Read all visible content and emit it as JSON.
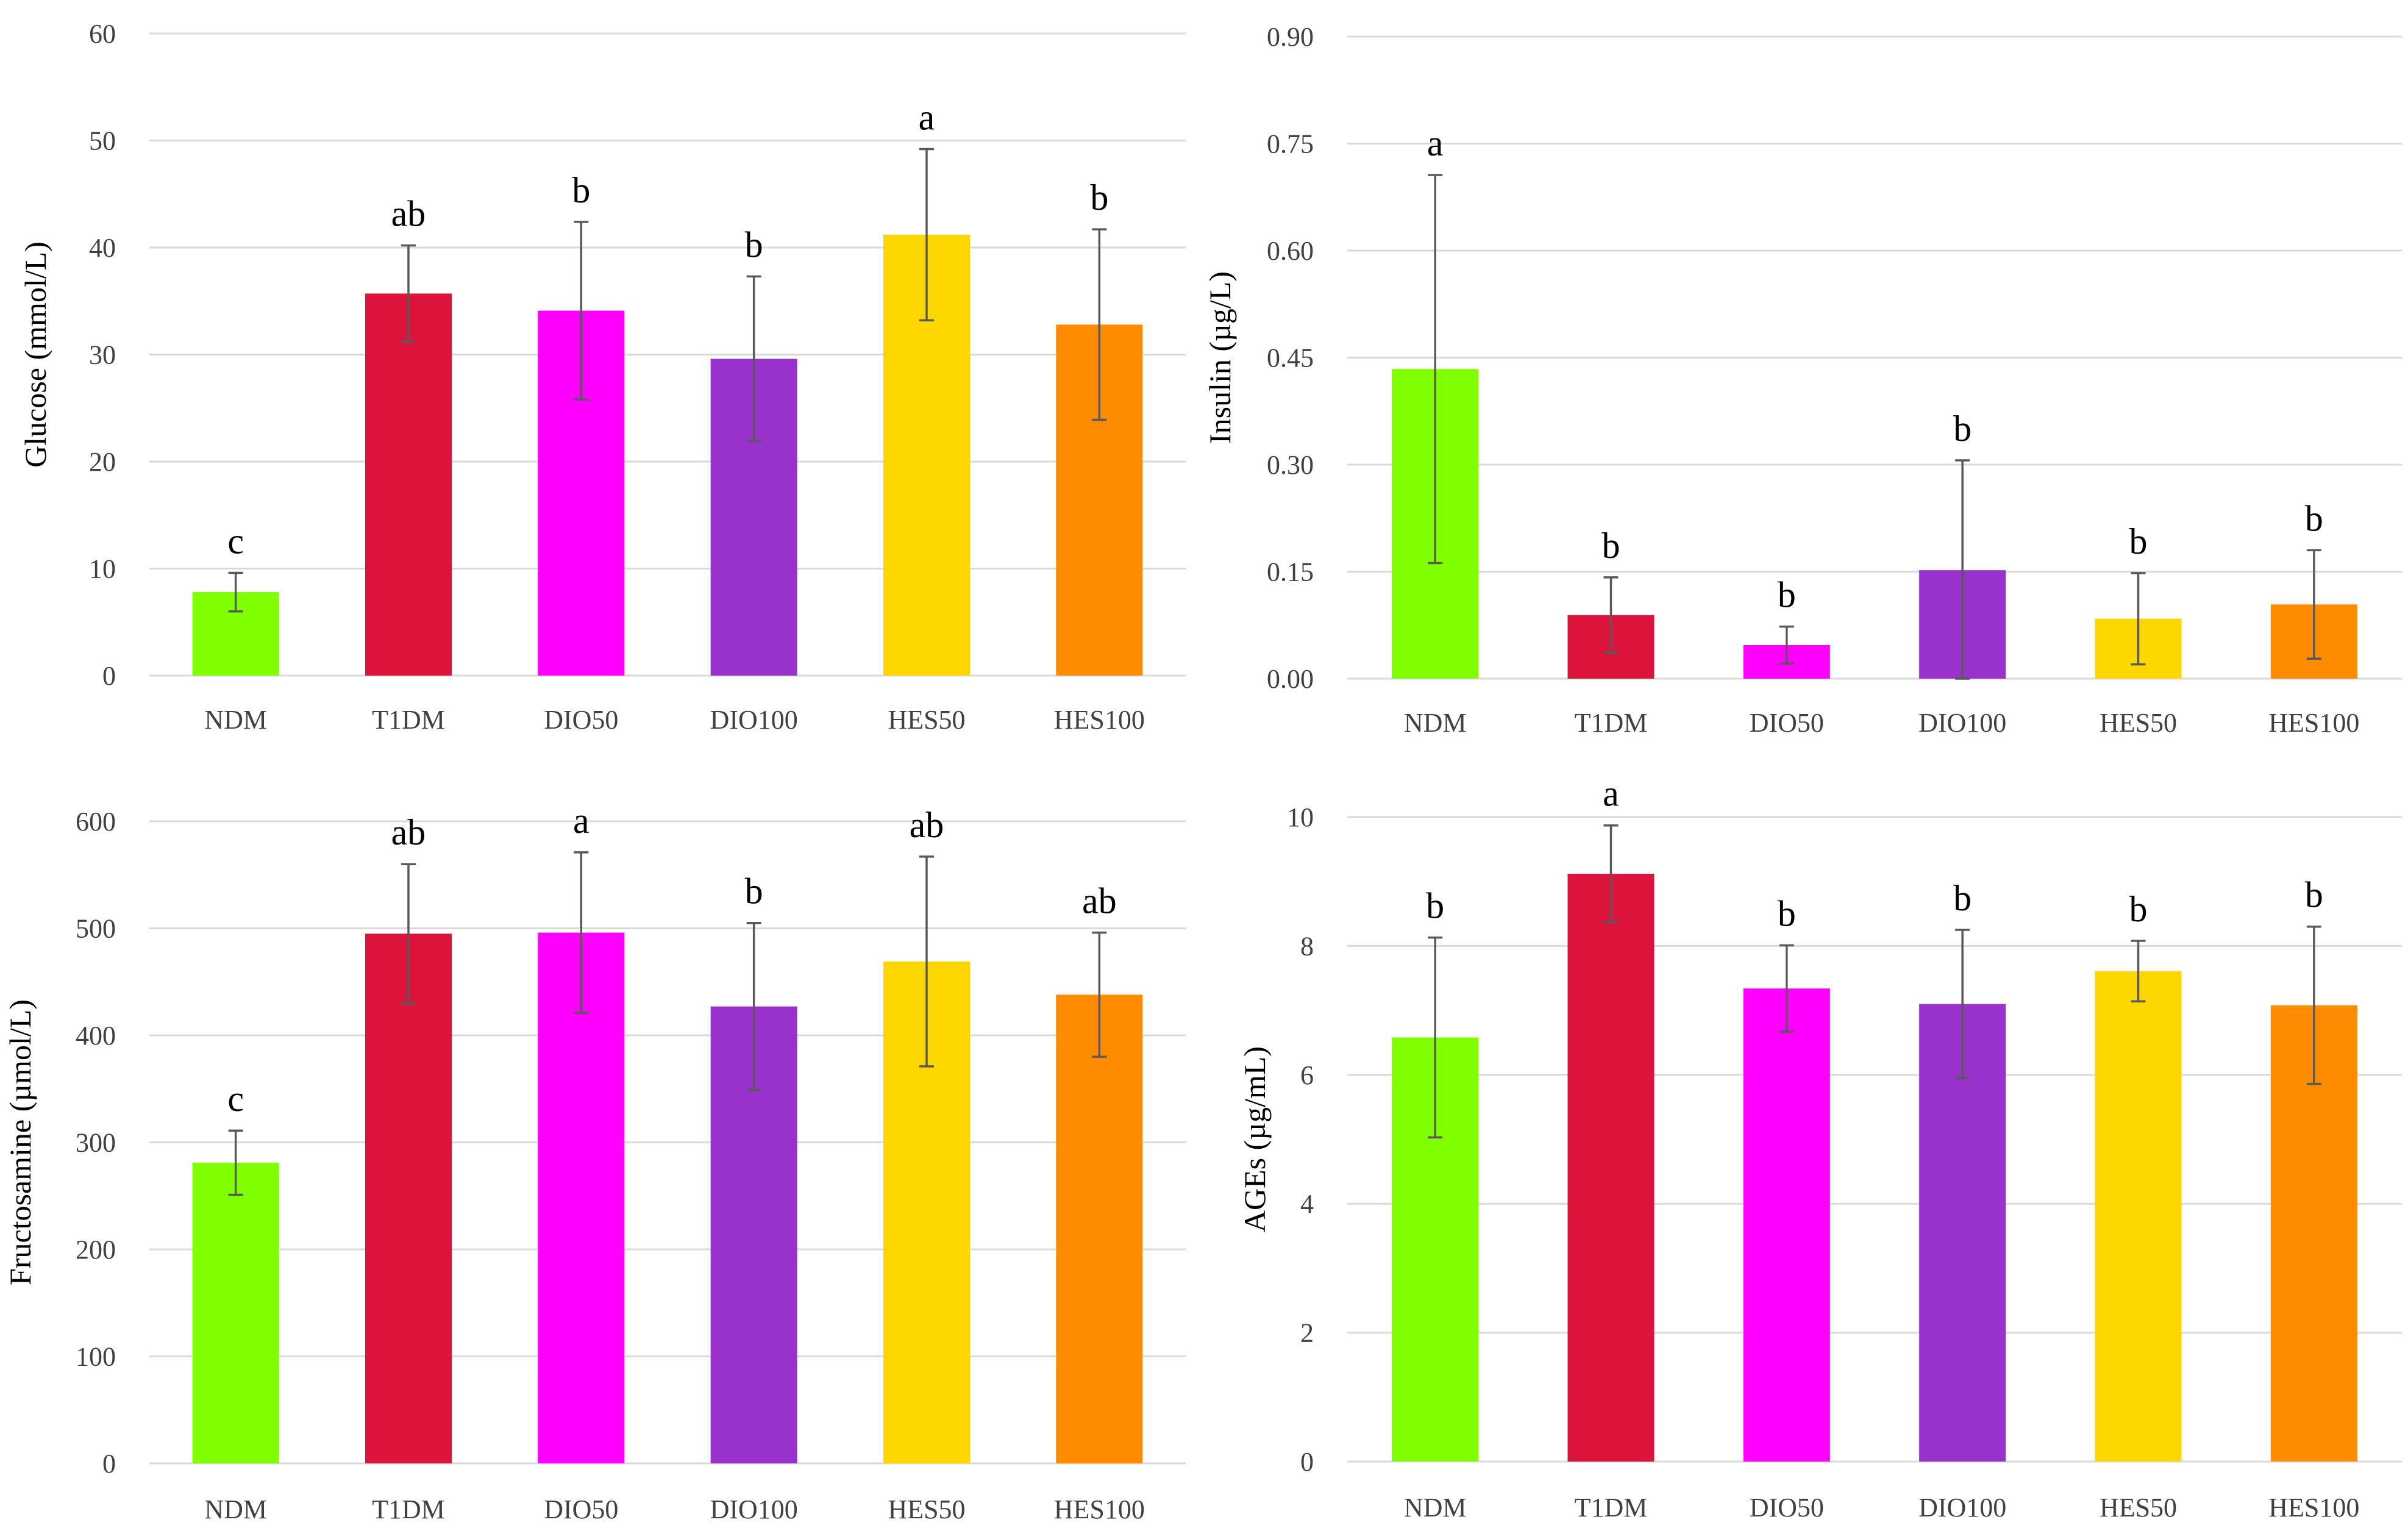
{
  "chart_data": [
    {
      "type": "bar",
      "ylabel": "Glucose (mmol/L)",
      "categories": [
        "NDM",
        "T1DM",
        "DIO50",
        "DIO100",
        "HES50",
        "HES100"
      ],
      "values": [
        7.8,
        35.7,
        34.1,
        29.6,
        41.2,
        32.8
      ],
      "errors": [
        1.8,
        4.5,
        8.3,
        7.7,
        8.0,
        8.9
      ],
      "significance": [
        "c",
        "ab",
        "b",
        "b",
        "a",
        "b"
      ],
      "ylim": [
        0,
        60
      ],
      "yticks": [
        "0",
        "10",
        "20",
        "30",
        "40",
        "50",
        "60"
      ],
      "grid": true
    },
    {
      "type": "bar",
      "ylabel": "Insulin (µg/L)",
      "categories": [
        "NDM",
        "T1DM",
        "DIO50",
        "DIO100",
        "HES50",
        "HES100"
      ],
      "values": [
        0.434,
        0.089,
        0.047,
        0.152,
        0.084,
        0.104
      ],
      "errors": [
        0.272,
        0.053,
        0.026,
        0.154,
        0.064,
        0.076
      ],
      "significance": [
        "a",
        "b",
        "b",
        "b",
        "b",
        "b"
      ],
      "ylim": [
        0,
        0.9
      ],
      "yticks": [
        "0.00",
        "0.15",
        "0.30",
        "0.45",
        "0.60",
        "0.75",
        "0.90"
      ],
      "grid": true
    },
    {
      "type": "bar",
      "ylabel": "Fructosamine (µmol/L)",
      "categories": [
        "NDM",
        "T1DM",
        "DIO50",
        "DIO100",
        "HES50",
        "HES100"
      ],
      "values": [
        281,
        495,
        496,
        427,
        469,
        438
      ],
      "errors": [
        30,
        65,
        75,
        78,
        98,
        58
      ],
      "significance": [
        "c",
        "ab",
        "a",
        "b",
        "ab",
        "ab"
      ],
      "ylim": [
        0,
        600
      ],
      "yticks": [
        "0",
        "100",
        "200",
        "300",
        "400",
        "500",
        "600"
      ],
      "grid": true
    },
    {
      "type": "bar",
      "ylabel": "AGEs (µg/mL)",
      "categories": [
        "NDM",
        "T1DM",
        "DIO50",
        "DIO100",
        "HES50",
        "HES100"
      ],
      "values": [
        6.58,
        9.12,
        7.34,
        7.1,
        7.61,
        7.08
      ],
      "errors": [
        1.55,
        0.75,
        0.67,
        1.15,
        0.47,
        1.22
      ],
      "significance": [
        "b",
        "a",
        "b",
        "b",
        "b",
        "b"
      ],
      "ylim": [
        0,
        10
      ],
      "yticks": [
        "0",
        "2",
        "4",
        "6",
        "8",
        "10"
      ],
      "grid": true
    }
  ],
  "colors": {
    "bars": [
      "#7FFF00",
      "#DC143C",
      "#FF00FF",
      "#9932CC",
      "#FFD700",
      "#FF8C00"
    ],
    "grid": "#D9D9D9",
    "errorbar": "#595959"
  }
}
